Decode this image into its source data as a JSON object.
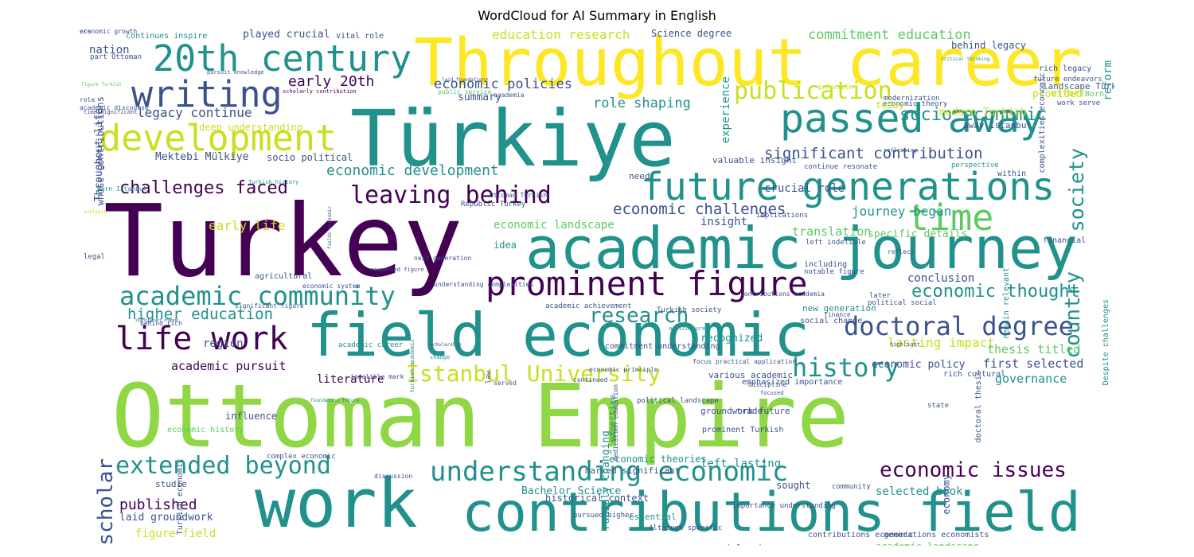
{
  "title": "WordCloud for AI Summary in English",
  "colors": {
    "purple": "#440154",
    "indigo": "#3b528b",
    "teal": "#21918c",
    "green": "#5ec962",
    "lime": "#8fd744",
    "yellow": "#fde725",
    "olive": "#c8e020"
  },
  "words": [
    {
      "t": "Ottoman Empire",
      "c": "lime"
    },
    {
      "t": "Turkey",
      "c": "purple"
    },
    {
      "t": "Türkiye",
      "c": "teal"
    },
    {
      "t": "Throughout career",
      "c": "yellow"
    },
    {
      "t": "work",
      "c": "teal"
    },
    {
      "t": "contributions field",
      "c": "teal"
    },
    {
      "t": "field economic",
      "c": "teal"
    },
    {
      "t": "academic journey",
      "c": "teal"
    },
    {
      "t": "20th century",
      "c": "teal"
    },
    {
      "t": "writing",
      "c": "indigo"
    },
    {
      "t": "development",
      "c": "olive"
    },
    {
      "t": "passed away",
      "c": "teal"
    },
    {
      "t": "future generations",
      "c": "teal"
    },
    {
      "t": "prominent figure",
      "c": "purple"
    },
    {
      "t": "academic community",
      "c": "teal"
    },
    {
      "t": "life work",
      "c": "purple"
    },
    {
      "t": "time",
      "c": "green"
    },
    {
      "t": "leaving behind",
      "c": "purple"
    },
    {
      "t": "publication",
      "c": "olive"
    },
    {
      "t": "doctoral degree",
      "c": "indigo"
    },
    {
      "t": "understanding economic",
      "c": "teal"
    },
    {
      "t": "extended beyond",
      "c": "teal"
    },
    {
      "t": "İstanbul University",
      "c": "olive"
    },
    {
      "t": "history",
      "c": "teal"
    },
    {
      "t": "research",
      "c": "teal"
    },
    {
      "t": "economic issues",
      "c": "purple"
    },
    {
      "t": "economic thought",
      "c": "teal"
    },
    {
      "t": "socio economic",
      "c": "teal"
    },
    {
      "t": "society",
      "c": "teal"
    },
    {
      "t": "country",
      "c": "teal"
    },
    {
      "t": "scholar",
      "c": "indigo"
    },
    {
      "t": "challenges faced",
      "c": "purple"
    },
    {
      "t": "significant contribution",
      "c": "indigo"
    },
    {
      "t": "economic development",
      "c": "teal"
    },
    {
      "t": "economic challenges",
      "c": "indigo"
    },
    {
      "t": "higher education",
      "c": "teal"
    },
    {
      "t": "early 20th",
      "c": "purple"
    },
    {
      "t": "economic policies",
      "c": "indigo"
    },
    {
      "t": "role shaping",
      "c": "teal"
    },
    {
      "t": "legacy continue",
      "c": "indigo"
    },
    {
      "t": "education research",
      "c": "olive"
    },
    {
      "t": "commitment education",
      "c": "green"
    },
    {
      "t": "nation",
      "c": "indigo"
    },
    {
      "t": "played crucial",
      "c": "indigo"
    },
    {
      "t": "Science degree",
      "c": "indigo"
    },
    {
      "t": "behind legacy",
      "c": "indigo"
    },
    {
      "t": "summary",
      "c": "indigo"
    },
    {
      "t": "deep understanding",
      "c": "olive"
    },
    {
      "t": "Mektebi Mülkiye",
      "c": "indigo"
    },
    {
      "t": "socio political",
      "c": "indigo"
    },
    {
      "t": "experience",
      "c": "teal"
    },
    {
      "t": "crucial role",
      "c": "indigo"
    },
    {
      "t": "journey began",
      "c": "teal"
    },
    {
      "t": "early life",
      "c": "olive"
    },
    {
      "t": "economic landscape",
      "c": "green"
    },
    {
      "t": "insight",
      "c": "indigo"
    },
    {
      "t": "translation",
      "c": "green"
    },
    {
      "t": "specific details",
      "c": "green"
    },
    {
      "t": "idea",
      "c": "teal"
    },
    {
      "t": "conclusion",
      "c": "indigo"
    },
    {
      "t": "region",
      "c": "indigo"
    },
    {
      "t": "recognized",
      "c": "teal"
    },
    {
      "t": "lasting impact",
      "c": "olive"
    },
    {
      "t": "thesis titled",
      "c": "green"
    },
    {
      "t": "first selected",
      "c": "indigo"
    },
    {
      "t": "governance",
      "c": "teal"
    },
    {
      "t": "academic pursuit",
      "c": "purple"
    },
    {
      "t": "economic policy",
      "c": "indigo"
    },
    {
      "t": "literature",
      "c": "purple"
    },
    {
      "t": "influence",
      "c": "indigo"
    },
    {
      "t": "expertise",
      "c": "teal"
    },
    {
      "t": "Bachelor Science",
      "c": "teal"
    },
    {
      "t": "published",
      "c": "purple"
    },
    {
      "t": "laid groundwork",
      "c": "indigo"
    },
    {
      "t": "figure field",
      "c": "olive"
    },
    {
      "t": "selected book",
      "c": "teal"
    },
    {
      "t": "economic theories",
      "c": "teal"
    },
    {
      "t": "essential",
      "c": "teal"
    },
    {
      "t": "economy",
      "c": "indigo"
    },
    {
      "t": "reform",
      "c": "teal"
    },
    {
      "t": "Throughout life",
      "c": "indigo"
    },
    {
      "t": "whose contributions",
      "c": "indigo"
    },
    {
      "t": "continues inspire",
      "c": "teal"
    },
    {
      "t": "vital role",
      "c": "indigo"
    },
    {
      "t": "part Ottoman",
      "c": "indigo"
    },
    {
      "t": "figure Turkish",
      "c": "green"
    },
    {
      "t": "pursuit knowledge",
      "c": "indigo"
    },
    {
      "t": "scholarly contribution",
      "c": "purple"
    },
    {
      "t": "laid foundation",
      "c": "indigo"
    },
    {
      "t": "public service",
      "c": "green"
    },
    {
      "t": "academia",
      "c": "indigo"
    },
    {
      "t": "principle",
      "c": "olive"
    },
    {
      "t": "complexities economic",
      "c": "indigo"
    },
    {
      "t": "economic theory",
      "c": "indigo"
    },
    {
      "t": "critical thinking",
      "c": "teal"
    },
    {
      "t": "perspective",
      "c": "teal"
    },
    {
      "t": "continue resonate",
      "c": "indigo"
    },
    {
      "t": "valuable insight",
      "c": "indigo"
    },
    {
      "t": "away Istanbul",
      "c": "indigo"
    },
    {
      "t": "Born Istanbul",
      "c": "teal"
    },
    {
      "t": "Turkish history",
      "c": "teal"
    },
    {
      "t": "Republic Turkey",
      "c": "indigo"
    },
    {
      "t": "Ottoman Turkish",
      "c": "indigo"
    },
    {
      "t": "implications",
      "c": "indigo"
    },
    {
      "t": "left indelible",
      "c": "indigo"
    },
    {
      "t": "including",
      "c": "indigo"
    },
    {
      "t": "notable figure",
      "c": "indigo"
    },
    {
      "t": "reflect",
      "c": "indigo"
    },
    {
      "t": "next generation",
      "c": "indigo"
    },
    {
      "t": "respected figure",
      "c": "indigo"
    },
    {
      "t": "understanding complexities",
      "c": "indigo"
    },
    {
      "t": "remain relevant",
      "c": "teal"
    },
    {
      "t": "later",
      "c": "indigo"
    },
    {
      "t": "political social",
      "c": "indigo"
    },
    {
      "t": "new generation",
      "c": "teal"
    },
    {
      "t": "Turkish society",
      "c": "indigo"
    },
    {
      "t": "academic achievement",
      "c": "indigo"
    },
    {
      "t": "Despite challenges",
      "c": "teal"
    },
    {
      "t": "significant figure",
      "c": "indigo"
    },
    {
      "t": "social change",
      "c": "indigo"
    },
    {
      "t": "finance",
      "c": "indigo"
    },
    {
      "t": "behind rich",
      "c": "indigo"
    },
    {
      "t": "academic career",
      "c": "teal"
    },
    {
      "t": "indelible mark",
      "c": "indigo"
    },
    {
      "t": "dedication education",
      "c": "indigo"
    },
    {
      "t": "various academic",
      "c": "indigo"
    },
    {
      "t": "economic principle",
      "c": "indigo"
    },
    {
      "t": "continued",
      "c": "indigo"
    },
    {
      "t": "focused",
      "c": "indigo"
    },
    {
      "t": "discipline",
      "c": "indigo"
    },
    {
      "t": "foundation future",
      "c": "teal"
    },
    {
      "t": "trade",
      "c": "indigo"
    },
    {
      "t": "state",
      "c": "indigo"
    },
    {
      "t": "political landscape",
      "c": "indigo"
    },
    {
      "t": "doctoral thesis",
      "c": "indigo"
    },
    {
      "t": "rich cultural",
      "c": "indigo"
    },
    {
      "t": "studie",
      "c": "indigo"
    },
    {
      "t": "community",
      "c": "indigo"
    },
    {
      "t": "sought",
      "c": "indigo"
    },
    {
      "t": "complex economic",
      "c": "indigo"
    },
    {
      "t": "discussion",
      "c": "indigo"
    },
    {
      "t": "pursued higher",
      "c": "indigo"
    },
    {
      "t": "importance understanding",
      "c": "indigo"
    },
    {
      "t": "Although specific",
      "c": "indigo"
    },
    {
      "t": "historical context",
      "c": "indigo"
    },
    {
      "t": "generations economists",
      "c": "indigo"
    },
    {
      "t": "social science",
      "c": "indigo"
    },
    {
      "t": "contributions economic",
      "c": "indigo"
    },
    {
      "t": "academic landscape",
      "c": "green"
    },
    {
      "t": "real world",
      "c": "indigo"
    },
    {
      "t": "advocating",
      "c": "indigo"
    },
    {
      "t": "evident",
      "c": "teal"
    },
    {
      "t": "marked significant",
      "c": "indigo"
    },
    {
      "t": "groundwork future",
      "c": "indigo"
    },
    {
      "t": "rapidly changing",
      "c": "teal"
    },
    {
      "t": "prominent Turkish",
      "c": "indigo"
    },
    {
      "t": "left lasting",
      "c": "teal"
    },
    {
      "t": "emphasized importance",
      "c": "indigo"
    },
    {
      "t": "economic history",
      "c": "green"
    },
    {
      "t": "Turkish economic",
      "c": "indigo"
    },
    {
      "t": "commitment understanding",
      "c": "indigo"
    },
    {
      "t": "law",
      "c": "indigo"
    },
    {
      "t": "contributions academia",
      "c": "indigo"
    },
    {
      "t": "served",
      "c": "indigo"
    },
    {
      "t": "legal",
      "c": "indigo"
    },
    {
      "t": "analysis",
      "c": "olive"
    },
    {
      "t": "focus practical application",
      "c": "indigo"
    },
    {
      "t": "highlight",
      "c": "indigo"
    },
    {
      "t": "agriculture",
      "c": "teal"
    },
    {
      "t": "economic system",
      "c": "indigo"
    },
    {
      "t": "need",
      "c": "indigo"
    },
    {
      "t": "modernization",
      "c": "indigo"
    },
    {
      "t": "role",
      "c": "indigo"
    },
    {
      "t": "academic discourse",
      "c": "indigo"
    },
    {
      "t": "time significant",
      "c": "indigo"
    },
    {
      "t": "work serve",
      "c": "indigo"
    },
    {
      "t": "fields economic",
      "c": "indigo"
    },
    {
      "t": "future endeavors",
      "c": "indigo"
    },
    {
      "t": "Born",
      "c": "green"
    },
    {
      "t": "rich legacy",
      "c": "indigo"
    },
    {
      "t": "landscape Turkey",
      "c": "indigo"
    },
    {
      "t": "effort",
      "c": "olive"
    },
    {
      "t": "provided",
      "c": "olive"
    },
    {
      "t": "today",
      "c": "olive"
    },
    {
      "t": "modern Turkish",
      "c": "olive"
    },
    {
      "t": "within",
      "c": "indigo"
    },
    {
      "t": "reflecting",
      "c": "indigo"
    },
    {
      "t": "financial",
      "c": "indigo"
    },
    {
      "t": "agricultural",
      "c": "indigo"
    },
    {
      "t": "significant change",
      "c": "indigo"
    },
    {
      "t": "turkish academic",
      "c": "teal"
    },
    {
      "t": "scholarship",
      "c": "indigo"
    },
    {
      "t": "change",
      "c": "teal"
    },
    {
      "t": "era",
      "c": "indigo"
    },
    {
      "t": "economic growth",
      "c": "indigo"
    }
  ]
}
